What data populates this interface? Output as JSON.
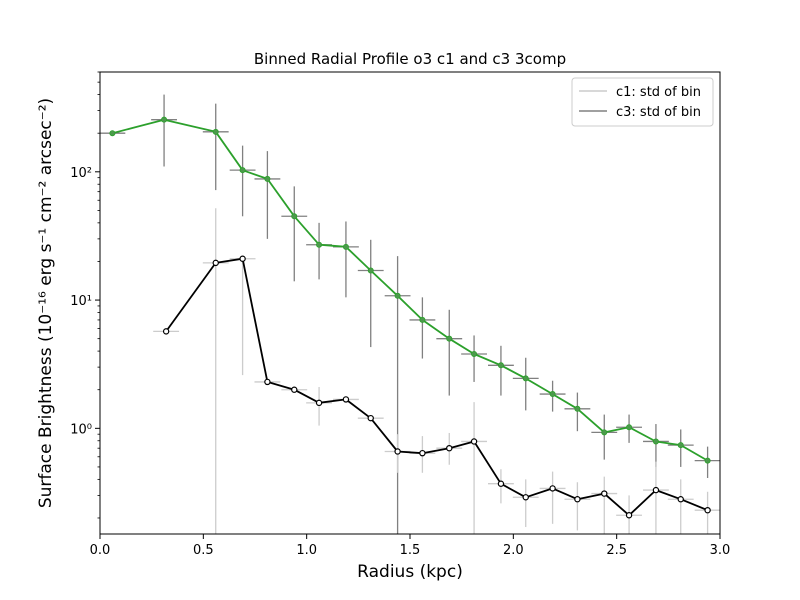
{
  "chart_data": {
    "type": "line",
    "title": "Binned Radial Profile o3 c1 and c3 3comp",
    "xlabel": "Radius (kpc)",
    "ylabel": "Surface Brightness (10⁻¹⁶ erg s⁻¹ cm⁻² arcsec⁻²)",
    "xlim": [
      0.0,
      3.0
    ],
    "ylim": [
      0.15,
      600
    ],
    "yscale": "log",
    "grid": false,
    "legend_position": "top-right",
    "x_ticks": [
      0.0,
      0.5,
      1.0,
      1.5,
      2.0,
      2.5,
      3.0
    ],
    "x_tick_labels": [
      "0.0",
      "0.5",
      "1.0",
      "1.5",
      "2.0",
      "2.5",
      "3.0"
    ],
    "y_ticks": [
      1,
      10,
      100
    ],
    "y_tick_labels": [
      "10⁰",
      "10¹",
      "10²"
    ],
    "series": [
      {
        "name": "c1: std of bin",
        "line_color": "#000000",
        "errorbar_color": "#cccccc",
        "x": [
          0.32,
          0.56,
          0.69,
          0.81,
          0.94,
          1.06,
          1.19,
          1.31,
          1.44,
          1.56,
          1.69,
          1.81,
          1.94,
          2.06,
          2.19,
          2.31,
          2.44,
          2.56,
          2.69,
          2.81,
          2.94
        ],
        "y": [
          5.7,
          19.5,
          21.0,
          2.3,
          2.0,
          1.58,
          1.68,
          1.2,
          0.66,
          0.64,
          0.7,
          0.79,
          0.37,
          0.29,
          0.34,
          0.28,
          0.31,
          0.21,
          0.33,
          0.28,
          0.23
        ],
        "y_err_low": [
          null,
          0.15,
          2.6,
          null,
          null,
          1.05,
          null,
          null,
          0.45,
          0.45,
          0.52,
          0.15,
          0.26,
          0.17,
          0.18,
          0.16,
          0.15,
          0.15,
          0.15,
          0.15,
          0.15
        ],
        "y_err_high": [
          null,
          52,
          22,
          null,
          null,
          2.1,
          null,
          null,
          0.9,
          0.87,
          0.92,
          1.6,
          0.48,
          0.4,
          0.46,
          0.38,
          0.42,
          0.3,
          0.55,
          0.4,
          0.32
        ],
        "x_err": 0.0625
      },
      {
        "name": "c3: std of bin",
        "line_color": "#2ca02c",
        "errorbar_color": "#808080",
        "x": [
          0.06,
          0.31,
          0.56,
          0.69,
          0.81,
          0.94,
          1.06,
          1.19,
          1.31,
          1.44,
          1.56,
          1.69,
          1.81,
          1.94,
          2.06,
          2.19,
          2.31,
          2.44,
          2.56,
          2.69,
          2.81,
          2.94
        ],
        "y": [
          200,
          255,
          205,
          103,
          88,
          45,
          27,
          26,
          17,
          10.8,
          7.0,
          5.0,
          3.8,
          3.1,
          2.45,
          1.85,
          1.42,
          0.93,
          1.02,
          0.79,
          0.74,
          0.56
        ],
        "y_err_low": [
          null,
          110,
          72,
          45,
          30,
          14,
          14.5,
          10.5,
          4.3,
          0.15,
          3.5,
          1.8,
          2.3,
          1.8,
          1.38,
          1.35,
          0.95,
          0.57,
          0.77,
          0.5,
          0.5,
          0.41
        ],
        "y_err_high": [
          null,
          400,
          340,
          160,
          145,
          77,
          40,
          41,
          29.5,
          22,
          10.5,
          8.4,
          5.3,
          4.4,
          3.55,
          2.35,
          1.9,
          1.28,
          1.28,
          1.08,
          0.98,
          0.72
        ],
        "x_err": 0.0625
      }
    ]
  }
}
